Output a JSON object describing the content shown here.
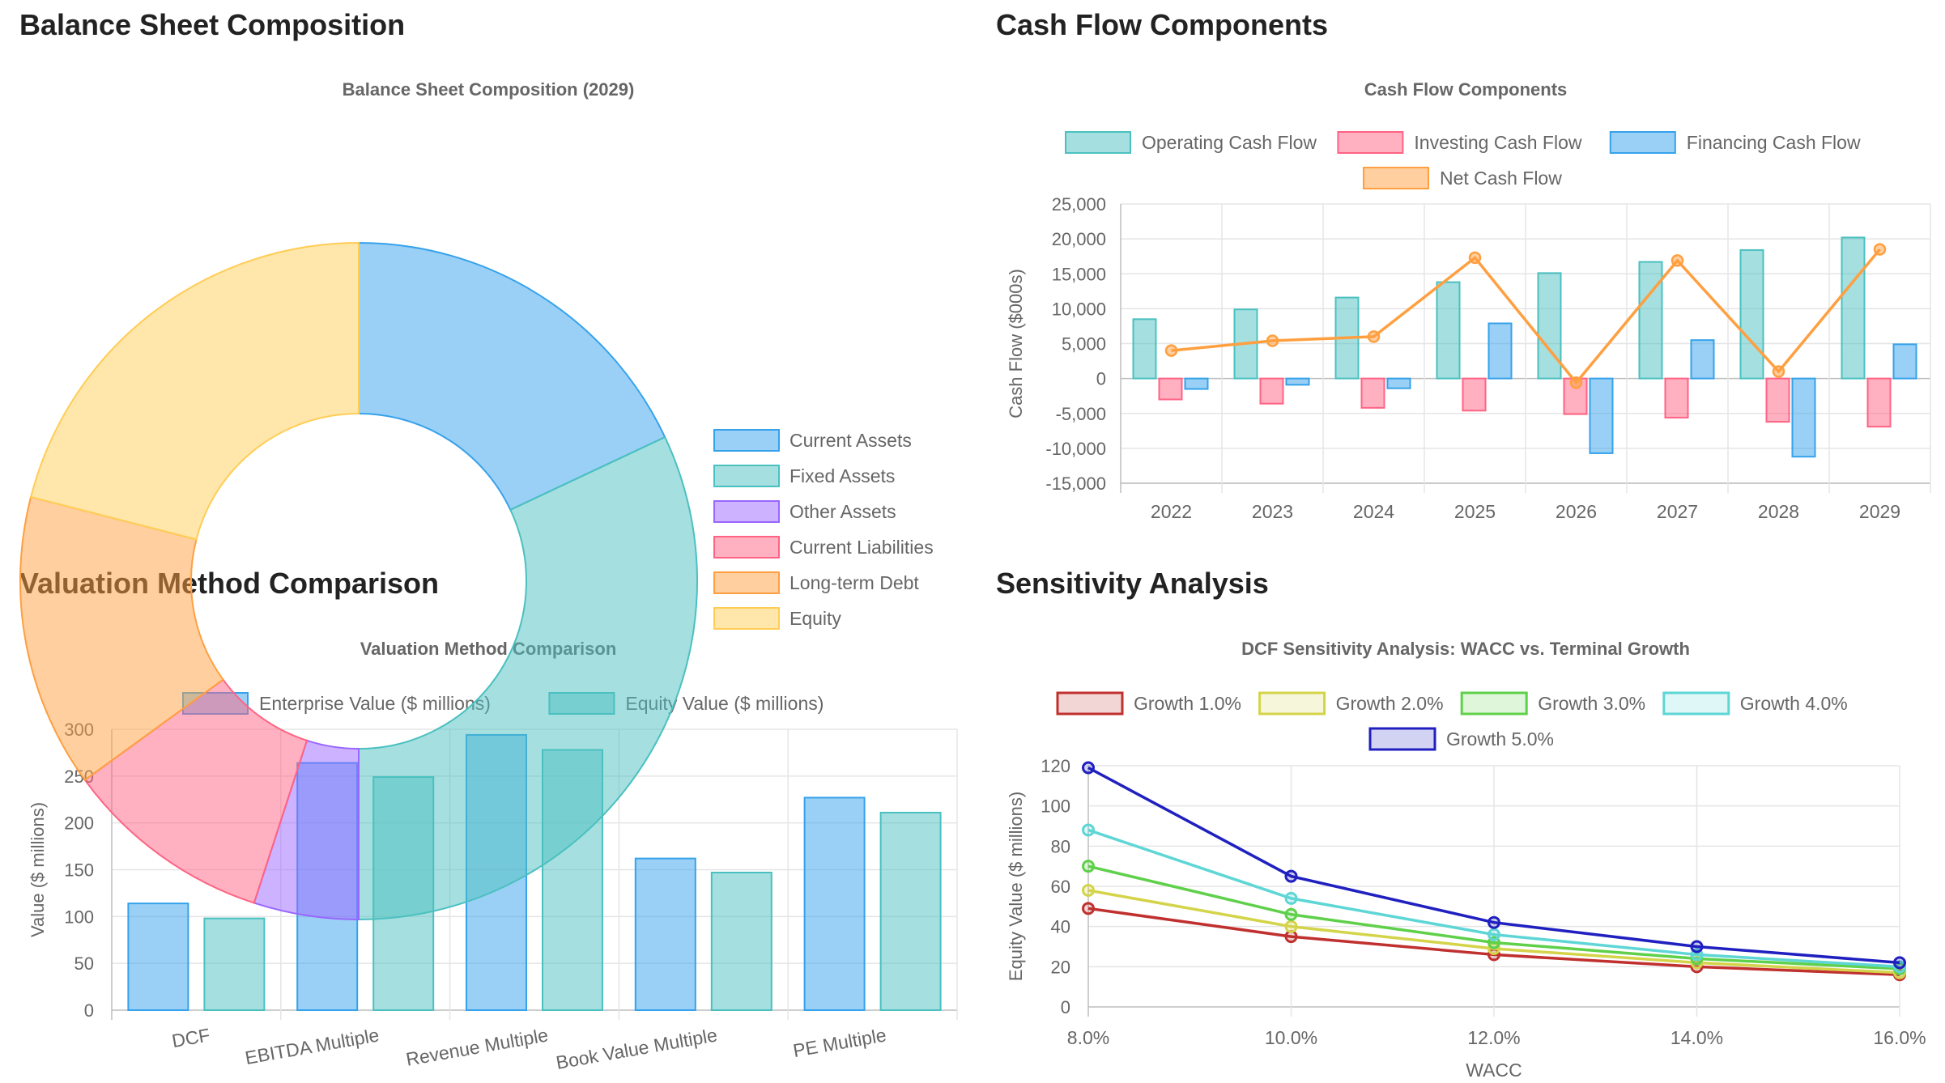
{
  "headings": {
    "balance": "Balance Sheet Composition",
    "cashflow": "Cash Flow Components",
    "valuation": "Valuation Method Comparison",
    "sensitivity": "Sensitivity Analysis"
  },
  "chart_data": [
    {
      "id": "balance",
      "type": "doughnut",
      "title": "Balance Sheet Composition (2029)",
      "legend_position": "right",
      "labels": [
        "Current Assets",
        "Fixed Assets",
        "Other Assets",
        "Current Liabilities",
        "Long-term Debt",
        "Equity"
      ],
      "values": [
        18,
        32,
        5,
        10,
        14,
        21
      ],
      "colors": [
        "#36a2eb",
        "#4bc0c0",
        "#9966ff",
        "#ff6384",
        "#ff9f40",
        "#ffcd56"
      ]
    },
    {
      "id": "cashflow",
      "type": "bar",
      "title": "Cash Flow Components",
      "ylabel": "Cash Flow ($000s)",
      "ylim": [
        -15000,
        25000
      ],
      "yticks": [
        "25,000",
        "20,000",
        "15,000",
        "10,000",
        "5,000",
        "0",
        "-5,000",
        "-10,000",
        "-15,000"
      ],
      "categories": [
        "2022",
        "2023",
        "2024",
        "2025",
        "2026",
        "2027",
        "2028",
        "2029"
      ],
      "legend_position": "top",
      "grid": true,
      "series": [
        {
          "name": "Operating Cash Flow",
          "kind": "bar",
          "color": "#4bc0c0",
          "values": [
            8500,
            9900,
            11600,
            13800,
            15100,
            16700,
            18400,
            20200
          ]
        },
        {
          "name": "Investing Cash Flow",
          "kind": "bar",
          "color": "#ff6384",
          "values": [
            -3000,
            -3600,
            -4200,
            -4600,
            -5100,
            -5600,
            -6200,
            -6900
          ]
        },
        {
          "name": "Financing Cash Flow",
          "kind": "bar",
          "color": "#36a2eb",
          "values": [
            -1500,
            -900,
            -1400,
            7900,
            -10700,
            5500,
            -11200,
            4900
          ]
        },
        {
          "name": "Net Cash Flow",
          "kind": "line",
          "color": "#ff9f40",
          "values": [
            4000,
            5400,
            6000,
            17300,
            -600,
            16900,
            1000,
            18500
          ]
        }
      ]
    },
    {
      "id": "valuation",
      "type": "bar",
      "title": "Valuation Method Comparison",
      "ylabel": "Value ($ millions)",
      "ylim": [
        0,
        300
      ],
      "yticks": [
        "300",
        "250",
        "200",
        "150",
        "100",
        "50",
        "0"
      ],
      "categories": [
        "DCF",
        "EBITDA Multiple",
        "Revenue Multiple",
        "Book Value Multiple",
        "PE Multiple"
      ],
      "legend_position": "top",
      "grid": true,
      "series": [
        {
          "name": "Enterprise Value ($ millions)",
          "color": "#36a2eb",
          "values": [
            114,
            264,
            294,
            162,
            227
          ]
        },
        {
          "name": "Equity Value ($ millions)",
          "color": "#4bc0c0",
          "values": [
            98,
            249,
            278,
            147,
            211
          ]
        }
      ]
    },
    {
      "id": "sensitivity",
      "type": "line",
      "title": "DCF Sensitivity Analysis: WACC vs. Terminal Growth",
      "xlabel": "WACC",
      "ylabel": "Equity Value ($ millions)",
      "ylim": [
        0,
        120
      ],
      "yticks": [
        "120",
        "100",
        "80",
        "60",
        "40",
        "20",
        "0"
      ],
      "x": [
        "8.0%",
        "10.0%",
        "12.0%",
        "14.0%",
        "16.0%"
      ],
      "legend_position": "top",
      "grid": true,
      "series": [
        {
          "name": "Growth 1.0%",
          "color": "#c0302e",
          "values": [
            49,
            35,
            26,
            20,
            16
          ]
        },
        {
          "name": "Growth 2.0%",
          "color": "#d4d44a",
          "values": [
            58,
            40,
            29,
            22,
            17
          ]
        },
        {
          "name": "Growth 3.0%",
          "color": "#5fd04a",
          "values": [
            70,
            46,
            32,
            24,
            19
          ]
        },
        {
          "name": "Growth 4.0%",
          "color": "#5ed6d6",
          "values": [
            88,
            54,
            36,
            26,
            20
          ]
        },
        {
          "name": "Growth 5.0%",
          "color": "#2020c0",
          "values": [
            119,
            65,
            42,
            30,
            22
          ]
        }
      ]
    }
  ]
}
